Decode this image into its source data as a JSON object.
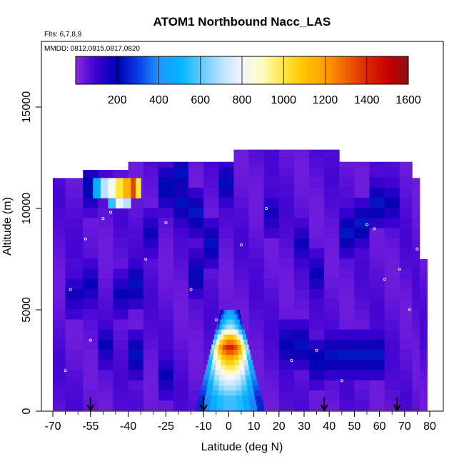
{
  "chart_data": {
    "type": "heatmap",
    "title": "ATOM1 Northbound Nacc_LAS",
    "flights_note": "Flts: 6,7,8,9",
    "dates_note": "MMDD: 0812,0815,0817,0820",
    "xlabel": "Latitude (deg N)",
    "ylabel": "Altitude (m)",
    "xlim": [
      -70,
      80
    ],
    "ylim": [
      0,
      17500
    ],
    "x_ticks": [
      -70,
      -55,
      -40,
      -25,
      -10,
      0,
      10,
      20,
      30,
      40,
      50,
      60,
      70,
      80
    ],
    "x_tick_labels": [
      "-70",
      "-55",
      "-40",
      "-25",
      "-10",
      "0",
      "10",
      "20",
      "30",
      "40",
      "50",
      "60",
      "70",
      "80"
    ],
    "y_ticks": [
      0,
      5000,
      10000,
      15000
    ],
    "y_tick_labels": [
      "0",
      "5000",
      "10000",
      "15000"
    ],
    "colorbar": {
      "range": [
        0,
        1600
      ],
      "tick_values": [
        200,
        400,
        600,
        800,
        1000,
        1200,
        1400,
        1600
      ],
      "tick_labels": [
        "200",
        "400",
        "600",
        "800",
        "1000",
        "1200",
        "1400",
        "1600"
      ],
      "color_stops": [
        {
          "value": 0,
          "color": "#8a2be2"
        },
        {
          "value": 100,
          "color": "#3a00d0"
        },
        {
          "value": 200,
          "color": "#0000b0"
        },
        {
          "value": 300,
          "color": "#0a3ce6"
        },
        {
          "value": 400,
          "color": "#2196ff"
        },
        {
          "value": 500,
          "color": "#00b4ff"
        },
        {
          "value": 600,
          "color": "#5ccaff"
        },
        {
          "value": 700,
          "color": "#b8e2ff"
        },
        {
          "value": 800,
          "color": "#f2f6ff"
        },
        {
          "value": 900,
          "color": "#fffbc0"
        },
        {
          "value": 1000,
          "color": "#ffe640"
        },
        {
          "value": 1100,
          "color": "#ffc400"
        },
        {
          "value": 1200,
          "color": "#ff9d00"
        },
        {
          "value": 1300,
          "color": "#f06400"
        },
        {
          "value": 1400,
          "color": "#dc2800"
        },
        {
          "value": 1500,
          "color": "#c80000"
        },
        {
          "value": 1600,
          "color": "#8a1010"
        }
      ]
    },
    "arrow_latitudes": [
      -55,
      -10,
      38,
      67
    ],
    "columns": [
      {
        "x0": -70,
        "x1": -65,
        "top": 11500,
        "base": 40,
        "dark_spots": []
      },
      {
        "x0": -65,
        "x1": -58,
        "top": 11500,
        "base": 40,
        "dark_spots": [
          {
            "y": 5500,
            "v": 130
          }
        ]
      },
      {
        "x0": -58,
        "x1": -52,
        "top": 11900,
        "base": 40,
        "dark_spots": [
          {
            "y": 10800,
            "v": 200
          },
          {
            "y": 6000,
            "v": 150
          }
        ]
      },
      {
        "x0": -52,
        "x1": -46,
        "top": 11900,
        "base": 40,
        "dark_spots": [
          {
            "y": 3000,
            "v": 150
          }
        ]
      },
      {
        "x0": -46,
        "x1": -40,
        "top": 11900,
        "base": 40,
        "dark_spots": [
          {
            "y": 5500,
            "v": 150
          }
        ]
      },
      {
        "x0": -40,
        "x1": -34,
        "top": 12300,
        "base": 40,
        "dark_spots": [
          {
            "y": 6000,
            "v": 190
          },
          {
            "y": 2500,
            "v": 190
          }
        ]
      },
      {
        "x0": -34,
        "x1": -28,
        "top": 12300,
        "base": 40,
        "dark_spots": [
          {
            "y": 8500,
            "v": 140
          }
        ]
      },
      {
        "x0": -28,
        "x1": -22,
        "top": 12300,
        "base": 40,
        "dark_spots": [
          {
            "y": 10800,
            "v": 200
          },
          {
            "y": 1500,
            "v": 150
          }
        ]
      },
      {
        "x0": -22,
        "x1": -16,
        "top": 12300,
        "base": 40,
        "dark_spots": [
          {
            "y": 11500,
            "v": 190
          },
          {
            "y": 10000,
            "v": 190
          }
        ]
      },
      {
        "x0": -16,
        "x1": -10,
        "top": 12300,
        "base": 40,
        "dark_spots": [
          {
            "y": 9500,
            "v": 200
          },
          {
            "y": 6500,
            "v": 180
          }
        ]
      },
      {
        "x0": -10,
        "x1": -4,
        "top": 12300,
        "base": 40,
        "dark_spots": [
          {
            "y": 8000,
            "v": 190
          }
        ]
      },
      {
        "x0": -4,
        "x1": 2,
        "top": 12300,
        "base": 40,
        "dark_spots": [
          {
            "y": 11000,
            "v": 180
          }
        ]
      },
      {
        "x0": 2,
        "x1": 8,
        "top": 12900,
        "base": 40,
        "dark_spots": []
      },
      {
        "x0": 8,
        "x1": 14,
        "top": 12900,
        "base": 40,
        "dark_spots": []
      },
      {
        "x0": 14,
        "x1": 20,
        "top": 12900,
        "base": 40,
        "dark_spots": [
          {
            "y": 9500,
            "v": 130
          }
        ]
      },
      {
        "x0": 20,
        "x1": 26,
        "top": 12900,
        "base": 40,
        "dark_spots": [
          {
            "y": 3000,
            "v": 170
          }
        ]
      },
      {
        "x0": 26,
        "x1": 32,
        "top": 12900,
        "base": 40,
        "dark_spots": [
          {
            "y": 3000,
            "v": 190
          },
          {
            "y": 8000,
            "v": 140
          }
        ]
      },
      {
        "x0": 32,
        "x1": 38,
        "top": 12900,
        "base": 40,
        "dark_spots": [
          {
            "y": 6500,
            "v": 150
          },
          {
            "y": 2200,
            "v": 190
          }
        ]
      },
      {
        "x0": 38,
        "x1": 44,
        "top": 12900,
        "base": 40,
        "dark_spots": [
          {
            "y": 2500,
            "v": 190
          }
        ]
      },
      {
        "x0": 44,
        "x1": 50,
        "top": 12300,
        "base": 40,
        "dark_spots": [
          {
            "y": 8500,
            "v": 200
          },
          {
            "y": 2500,
            "v": 200
          }
        ]
      },
      {
        "x0": 50,
        "x1": 56,
        "top": 12300,
        "base": 40,
        "dark_spots": [
          {
            "y": 9000,
            "v": 200
          },
          {
            "y": 2500,
            "v": 200
          }
        ]
      },
      {
        "x0": 56,
        "x1": 62,
        "top": 12300,
        "base": 40,
        "dark_spots": [
          {
            "y": 10000,
            "v": 200
          },
          {
            "y": 2500,
            "v": 200
          }
        ]
      },
      {
        "x0": 62,
        "x1": 68,
        "top": 12300,
        "base": 40,
        "dark_spots": [
          {
            "y": 10000,
            "v": 150
          }
        ]
      },
      {
        "x0": 68,
        "x1": 73,
        "top": 12300,
        "base": 40,
        "dark_spots": []
      },
      {
        "x0": 73,
        "x1": 76,
        "top": 11500,
        "base": 40,
        "dark_spots": []
      },
      {
        "x0": 76,
        "x1": 79,
        "top": 7500,
        "base": 40,
        "dark_spots": []
      }
    ],
    "plumes": [
      {
        "x0": -54,
        "x1": -35,
        "y0": 10500,
        "y1": 11500,
        "cells": [
          {
            "x0": -54,
            "x1": -51,
            "v": 480
          },
          {
            "x0": -51,
            "x1": -48,
            "v": 700
          },
          {
            "x0": -48,
            "x1": -45,
            "v": 820
          },
          {
            "x0": -45,
            "x1": -42,
            "v": 1000
          },
          {
            "x0": -42,
            "x1": -39,
            "v": 1150
          },
          {
            "x0": -39,
            "x1": -37,
            "v": 1350
          },
          {
            "x0": -37,
            "x1": -35,
            "v": 1000
          }
        ]
      },
      {
        "x0": -48,
        "x1": -39,
        "y0": 10000,
        "y1": 10500,
        "cells": [
          {
            "x0": -48,
            "x1": -45,
            "v": 550
          },
          {
            "x0": -45,
            "x1": -42,
            "v": 780
          },
          {
            "x0": -42,
            "x1": -39,
            "v": 700
          }
        ]
      },
      {
        "x0": -13,
        "x1": 14,
        "y0": 40,
        "y1": 5000,
        "profile": [
          {
            "y": 500,
            "v": 560
          },
          {
            "y": 1500,
            "v": 800
          },
          {
            "y": 2500,
            "v": 1150
          },
          {
            "y": 3000,
            "v": 1450
          },
          {
            "y": 3500,
            "v": 1150
          },
          {
            "y": 4000,
            "v": 700
          },
          {
            "y": 4800,
            "v": 420
          }
        ]
      }
    ],
    "dot_series": [
      {
        "x": -65,
        "y": 2000
      },
      {
        "x": -63,
        "y": 6000
      },
      {
        "x": -57,
        "y": 8500
      },
      {
        "x": -55,
        "y": 3500
      },
      {
        "x": -50,
        "y": 9500
      },
      {
        "x": -47,
        "y": 9800
      },
      {
        "x": -44,
        "y": 10100
      },
      {
        "x": -33,
        "y": 7500
      },
      {
        "x": -25,
        "y": 9300
      },
      {
        "x": -15,
        "y": 6000
      },
      {
        "x": -5,
        "y": 4500
      },
      {
        "x": 5,
        "y": 8200
      },
      {
        "x": 15,
        "y": 10000
      },
      {
        "x": 25,
        "y": 2500
      },
      {
        "x": 35,
        "y": 3000
      },
      {
        "x": 45,
        "y": 1500
      },
      {
        "x": 55,
        "y": 9200
      },
      {
        "x": 58,
        "y": 9000
      },
      {
        "x": 62,
        "y": 6500
      },
      {
        "x": 68,
        "y": 7000
      },
      {
        "x": 72,
        "y": 5000
      },
      {
        "x": 75,
        "y": 8000
      }
    ]
  }
}
